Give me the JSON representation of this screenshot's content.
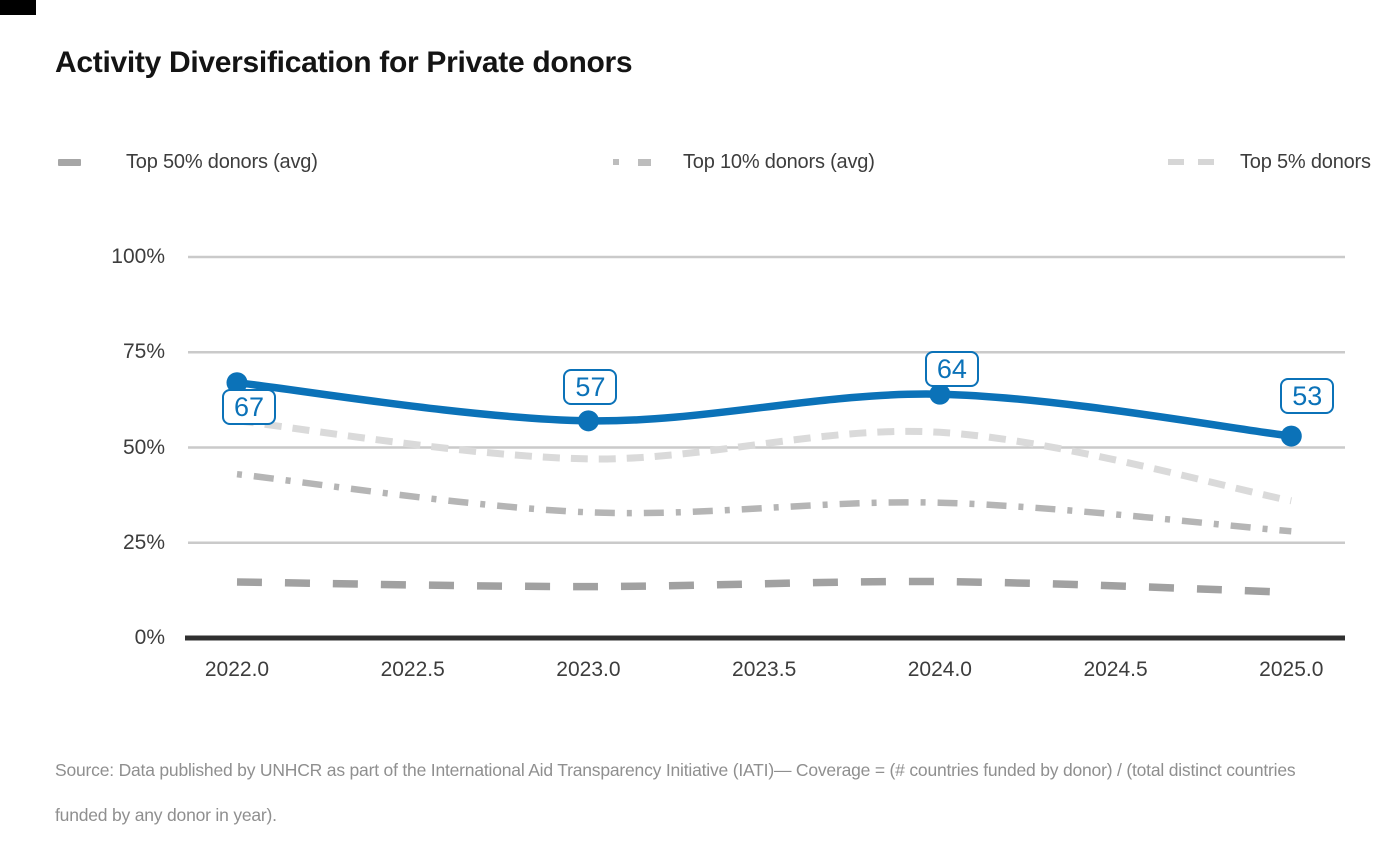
{
  "page": {
    "title": "Activity Diversification for Private donors",
    "source": "Source: Data published by UNHCR as part of the International Aid Transparency Initiative (IATI)— Coverage = (# countries funded by donor) / (total distinct countries funded by any donor in year)."
  },
  "legend": [
    {
      "label": "Top 50% donors (avg)"
    },
    {
      "label": "Top 10% donors (avg)"
    },
    {
      "label": "Top 5% donors"
    }
  ],
  "colors": {
    "primary_blue": "#0b72b8",
    "gray_top50": "#a1a1a1",
    "gray_top10": "#b5b5b5",
    "gray_top5": "#dadada",
    "gridline": "#cacaca",
    "axis": "#303030"
  },
  "chart_data": {
    "type": "line",
    "title": "Activity Diversification for Private donors",
    "xlabel": "",
    "ylabel": "",
    "x": [
      2022,
      2023,
      2024,
      2025
    ],
    "x_ticks": [
      {
        "label": "2022.0",
        "value": 2022.0
      },
      {
        "label": "2022.5",
        "value": 2022.5
      },
      {
        "label": "2023.0",
        "value": 2023.0
      },
      {
        "label": "2023.5",
        "value": 2023.5
      },
      {
        "label": "2024.0",
        "value": 2024.0
      },
      {
        "label": "2024.5",
        "value": 2024.5
      },
      {
        "label": "2025.0",
        "value": 2025.0
      }
    ],
    "y_ticks": [
      {
        "label": "100%",
        "value": 100
      },
      {
        "label": "75%",
        "value": 75
      },
      {
        "label": "50%",
        "value": 50
      },
      {
        "label": "25%",
        "value": 25
      },
      {
        "label": "0%",
        "value": 0
      }
    ],
    "ylim": [
      0,
      100
    ],
    "grid": "horizontal",
    "legend_position": "top",
    "series": [
      {
        "name": "Private donors",
        "color": "#0b72b8",
        "style": "solid",
        "values": [
          67,
          57,
          64,
          53
        ],
        "point_labels": [
          "67",
          "57",
          "64",
          "53"
        ]
      },
      {
        "name": "Top 50% donors (avg)",
        "color": "#a1a1a1",
        "style": "long-dash",
        "values": [
          14.7,
          13.5,
          14.8,
          12
        ]
      },
      {
        "name": "Top 10% donors (avg)",
        "color": "#b5b5b5",
        "style": "dash-dot",
        "values": [
          43,
          33,
          35.5,
          28
        ]
      },
      {
        "name": "Top 5% donors",
        "color": "#dadada",
        "style": "dash",
        "values": [
          57,
          47,
          54,
          36
        ]
      }
    ]
  }
}
